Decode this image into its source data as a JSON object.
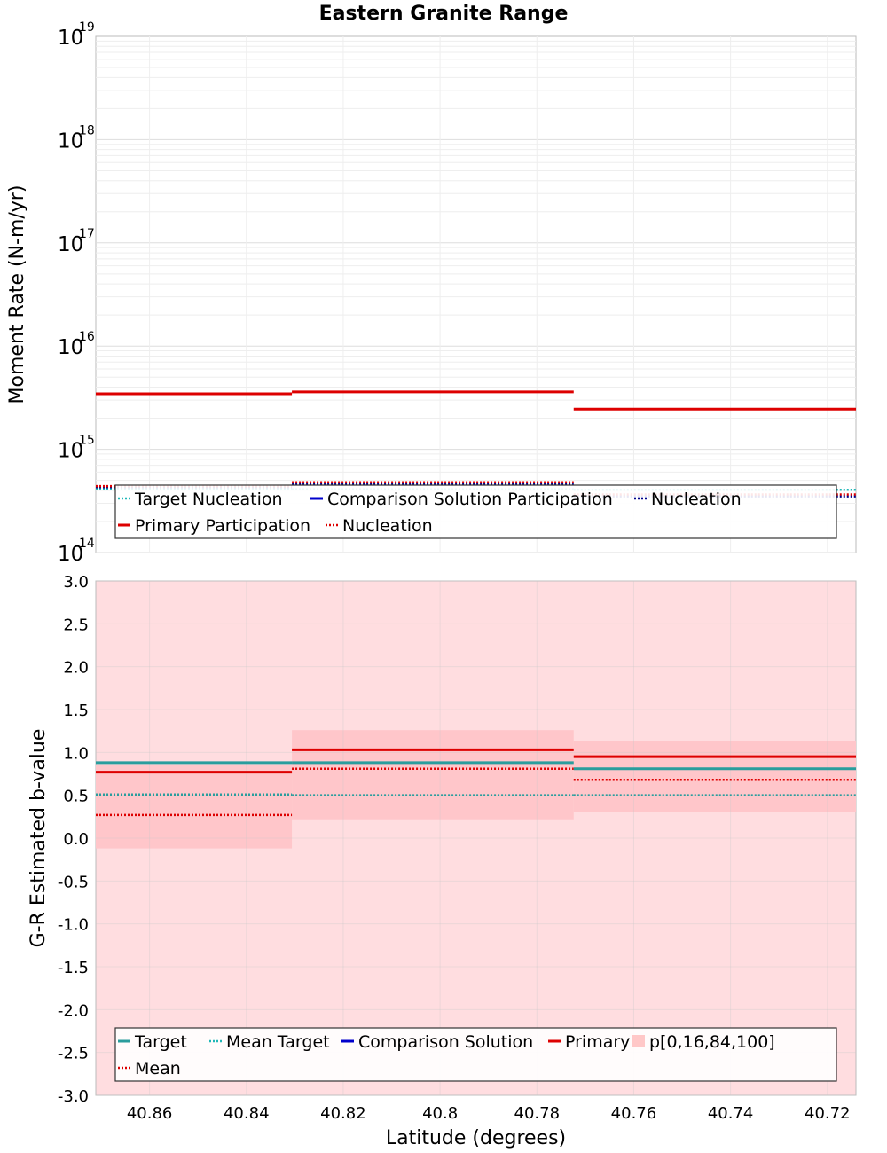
{
  "chart_data": [
    {
      "type": "line",
      "title": "Eastern Granite Range",
      "xlabel": "",
      "ylabel": "Moment Rate (N-m/yr)",
      "yscale": "log",
      "ylim": [
        100000000000000.0,
        1e+19
      ],
      "xlim": [
        40.8711,
        40.7141
      ],
      "x_reversed": true,
      "y_tick_base": "10",
      "y_ticks": [
        {
          "value": 100000000000000.0,
          "exp": "14"
        },
        {
          "value": 1000000000000000.0,
          "exp": "15"
        },
        {
          "value": 1e+16,
          "exp": "16"
        },
        {
          "value": 1e+17,
          "exp": "17"
        },
        {
          "value": 1e+18,
          "exp": "18"
        },
        {
          "value": 1e+19,
          "exp": "19"
        }
      ],
      "grid": true,
      "segments": [
        {
          "x": [
            40.8711,
            40.8306
          ],
          "target_nucleation": 410000000000000.0,
          "comparison_nucleation": 430000000000000.0,
          "primary_participation": 3450000000000000.0,
          "primary_nucleation": 440000000000000.0
        },
        {
          "x": [
            40.8306,
            40.7724
          ],
          "target_nucleation": 410000000000000.0,
          "comparison_nucleation": 460000000000000.0,
          "primary_participation": 3600000000000000.0,
          "primary_nucleation": 480000000000000.0
        },
        {
          "x": [
            40.7724,
            40.7141
          ],
          "target_nucleation": 405000000000000.0,
          "comparison_nucleation": 350000000000000.0,
          "primary_participation": 2450000000000000.0,
          "primary_nucleation": 365000000000000.0
        }
      ],
      "series": [
        {
          "name": "Target Nucleation",
          "color": "#1fb8b8",
          "style": "dotted",
          "key": "target_nucleation"
        },
        {
          "name": "Comparison Solution Participation",
          "color": "#0000cc",
          "style": "solid",
          "key": "comparison_participation"
        },
        {
          "name": "Nucleation",
          "color": "#00008b",
          "style": "dotted",
          "key": "comparison_nucleation"
        },
        {
          "name": "Primary Participation",
          "color": "#dd0000",
          "style": "solid",
          "key": "primary_participation"
        },
        {
          "name": "Nucleation",
          "color": "#dd0000",
          "style": "dotted",
          "key": "primary_nucleation"
        }
      ],
      "legend_position": "bottom"
    },
    {
      "type": "line",
      "title": "",
      "xlabel": "Latitude (degrees)",
      "ylabel": "G-R Estimated b-value",
      "ylim": [
        -3.0,
        3.0
      ],
      "xlim": [
        40.8711,
        40.7141
      ],
      "x_reversed": true,
      "x_ticks": [
        "40.86",
        "40.84",
        "40.82",
        "40.8",
        "40.78",
        "40.76",
        "40.74",
        "40.72"
      ],
      "x_tick_values": [
        40.86,
        40.84,
        40.82,
        40.8,
        40.78,
        40.76,
        40.74,
        40.72
      ],
      "y_ticks": [
        "3.0",
        "2.5",
        "2.0",
        "1.5",
        "1.0",
        "0.5",
        "0.0",
        "-0.5",
        "-1.0",
        "-1.5",
        "-2.0",
        "-2.5",
        "-3.0"
      ],
      "y_tick_values": [
        3.0,
        2.5,
        2.0,
        1.5,
        1.0,
        0.5,
        0.0,
        -0.5,
        -1.0,
        -1.5,
        -2.0,
        -2.5,
        -3.0
      ],
      "grid": true,
      "segments": [
        {
          "x": [
            40.8711,
            40.8306
          ],
          "target": 0.88,
          "mean_target": 0.51,
          "primary": 0.77,
          "mean": 0.27,
          "p0": -3.0,
          "p16": -0.12,
          "p84": 0.86,
          "p100": 3.0
        },
        {
          "x": [
            40.8306,
            40.7724
          ],
          "target": 0.88,
          "mean_target": 0.5,
          "primary": 1.03,
          "mean": 0.81,
          "p0": -3.0,
          "p16": 0.22,
          "p84": 1.26,
          "p100": 3.0
        },
        {
          "x": [
            40.7724,
            40.7141
          ],
          "target": 0.81,
          "mean_target": 0.5,
          "primary": 0.95,
          "mean": 0.68,
          "p0": -3.0,
          "p16": 0.31,
          "p84": 1.13,
          "p100": 3.0
        }
      ],
      "series": [
        {
          "name": "Target",
          "color": "#2a9d9d",
          "style": "solid",
          "key": "target"
        },
        {
          "name": "Mean Target",
          "color": "#1fb8b8",
          "style": "dotted",
          "key": "mean_target"
        },
        {
          "name": "Comparison Solution",
          "color": "#0000cc",
          "style": "solid",
          "key": "comparison"
        },
        {
          "name": "Primary",
          "color": "#dd0000",
          "style": "solid",
          "key": "primary"
        },
        {
          "name": "p[0,16,84,100]",
          "color": "#ffc8c8",
          "style": "box",
          "key": "band"
        },
        {
          "name": "Mean",
          "color": "#dd0000",
          "style": "dotted",
          "key": "mean"
        }
      ],
      "band_colors": {
        "outer": "#ffdde0",
        "inner": "#ffc6ca"
      },
      "legend_position": "bottom"
    }
  ]
}
